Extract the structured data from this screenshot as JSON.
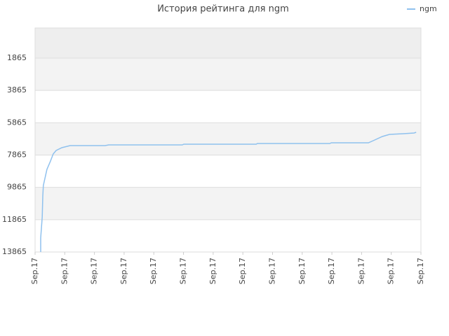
{
  "chart_data": {
    "type": "line",
    "title": "История рейтинга для ngm",
    "series": [
      {
        "name": "ngm",
        "color": "#8fc1ee",
        "x": [
          0.19,
          0.19,
          0.24,
          0.26,
          0.28,
          0.33,
          0.4,
          0.52,
          0.61,
          0.71,
          0.9,
          1.18,
          2.36,
          2.48,
          4.96,
          5.01,
          7.45,
          7.49,
          9.93,
          9.98,
          11.23,
          11.39,
          11.7,
          11.94,
          12.41,
          12.77,
          12.84
        ],
        "values": [
          13865,
          12999,
          11699,
          10400,
          9750,
          9317,
          8754,
          8234,
          7800,
          7584,
          7411,
          7281,
          7281,
          7237,
          7237,
          7194,
          7194,
          7151,
          7151,
          7107,
          7107,
          6977,
          6717,
          6587,
          6544,
          6501,
          6458
        ]
      }
    ],
    "ylim": [
      13865,
      3
    ],
    "yticks": [
      1865,
      3865,
      5865,
      7865,
      9865,
      11865,
      13865
    ],
    "xlim": [
      0,
      13
    ],
    "xticks": [
      {
        "value": 0,
        "label": "Sep.17"
      },
      {
        "value": 1,
        "label": "Sep.17"
      },
      {
        "value": 2,
        "label": "Sep.17"
      },
      {
        "value": 3,
        "label": "Sep.17"
      },
      {
        "value": 4,
        "label": "Sep.17"
      },
      {
        "value": 5,
        "label": "Sep.17"
      },
      {
        "value": 6,
        "label": "Sep.17"
      },
      {
        "value": 7,
        "label": "Sep.17"
      },
      {
        "value": 8,
        "label": "Sep.17"
      },
      {
        "value": 9,
        "label": "Sep.17"
      },
      {
        "value": 10,
        "label": "Sep.17"
      },
      {
        "value": 11,
        "label": "Sep.17"
      },
      {
        "value": 12,
        "label": "Sep.17"
      },
      {
        "value": 13,
        "label": "Sep.17"
      }
    ],
    "grid": true,
    "legend": "top-right"
  }
}
